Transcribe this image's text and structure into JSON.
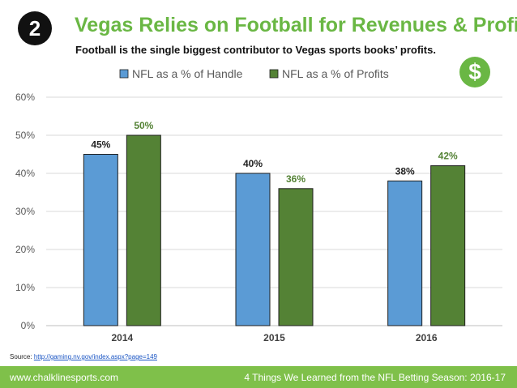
{
  "slide": {
    "number": "2",
    "title": "Vegas Relies on Football for Revenues & Profits",
    "subtitle": "Football is the single biggest contributor to Vegas sports books’ profits.",
    "dollar_symbol": "$"
  },
  "source": {
    "label": "Source:",
    "link": "http://gaming.nv.gov/index.aspx?page=149"
  },
  "footer": {
    "website": "www.chalklinesports.com",
    "series": "4 Things We Learned from the NFL Betting Season: 2016-17"
  },
  "colors": {
    "accent": "#6ab744",
    "handle": "#5b9bd5",
    "profits": "#548235",
    "footer": "#7fc04a"
  },
  "chart_data": {
    "type": "bar",
    "categories": [
      "2014",
      "2015",
      "2016"
    ],
    "series": [
      {
        "name": "NFL as a % of Handle",
        "values": [
          45,
          40,
          38
        ],
        "labels": [
          "45%",
          "40%",
          "38%"
        ],
        "color": "#5b9bd5",
        "label_color": "#222222"
      },
      {
        "name": "NFL as a % of Profits",
        "values": [
          50,
          36,
          42
        ],
        "labels": [
          "50%",
          "36%",
          "42%"
        ],
        "color": "#548235",
        "label_color": "#548235"
      }
    ],
    "ylim": [
      0,
      60
    ],
    "yticks": [
      0,
      10,
      20,
      30,
      40,
      50,
      60
    ],
    "ytick_labels": [
      "0%",
      "10%",
      "20%",
      "30%",
      "40%",
      "50%",
      "60%"
    ],
    "legend_position": "top-center",
    "grid": true,
    "title": "",
    "xlabel": "",
    "ylabel": ""
  }
}
